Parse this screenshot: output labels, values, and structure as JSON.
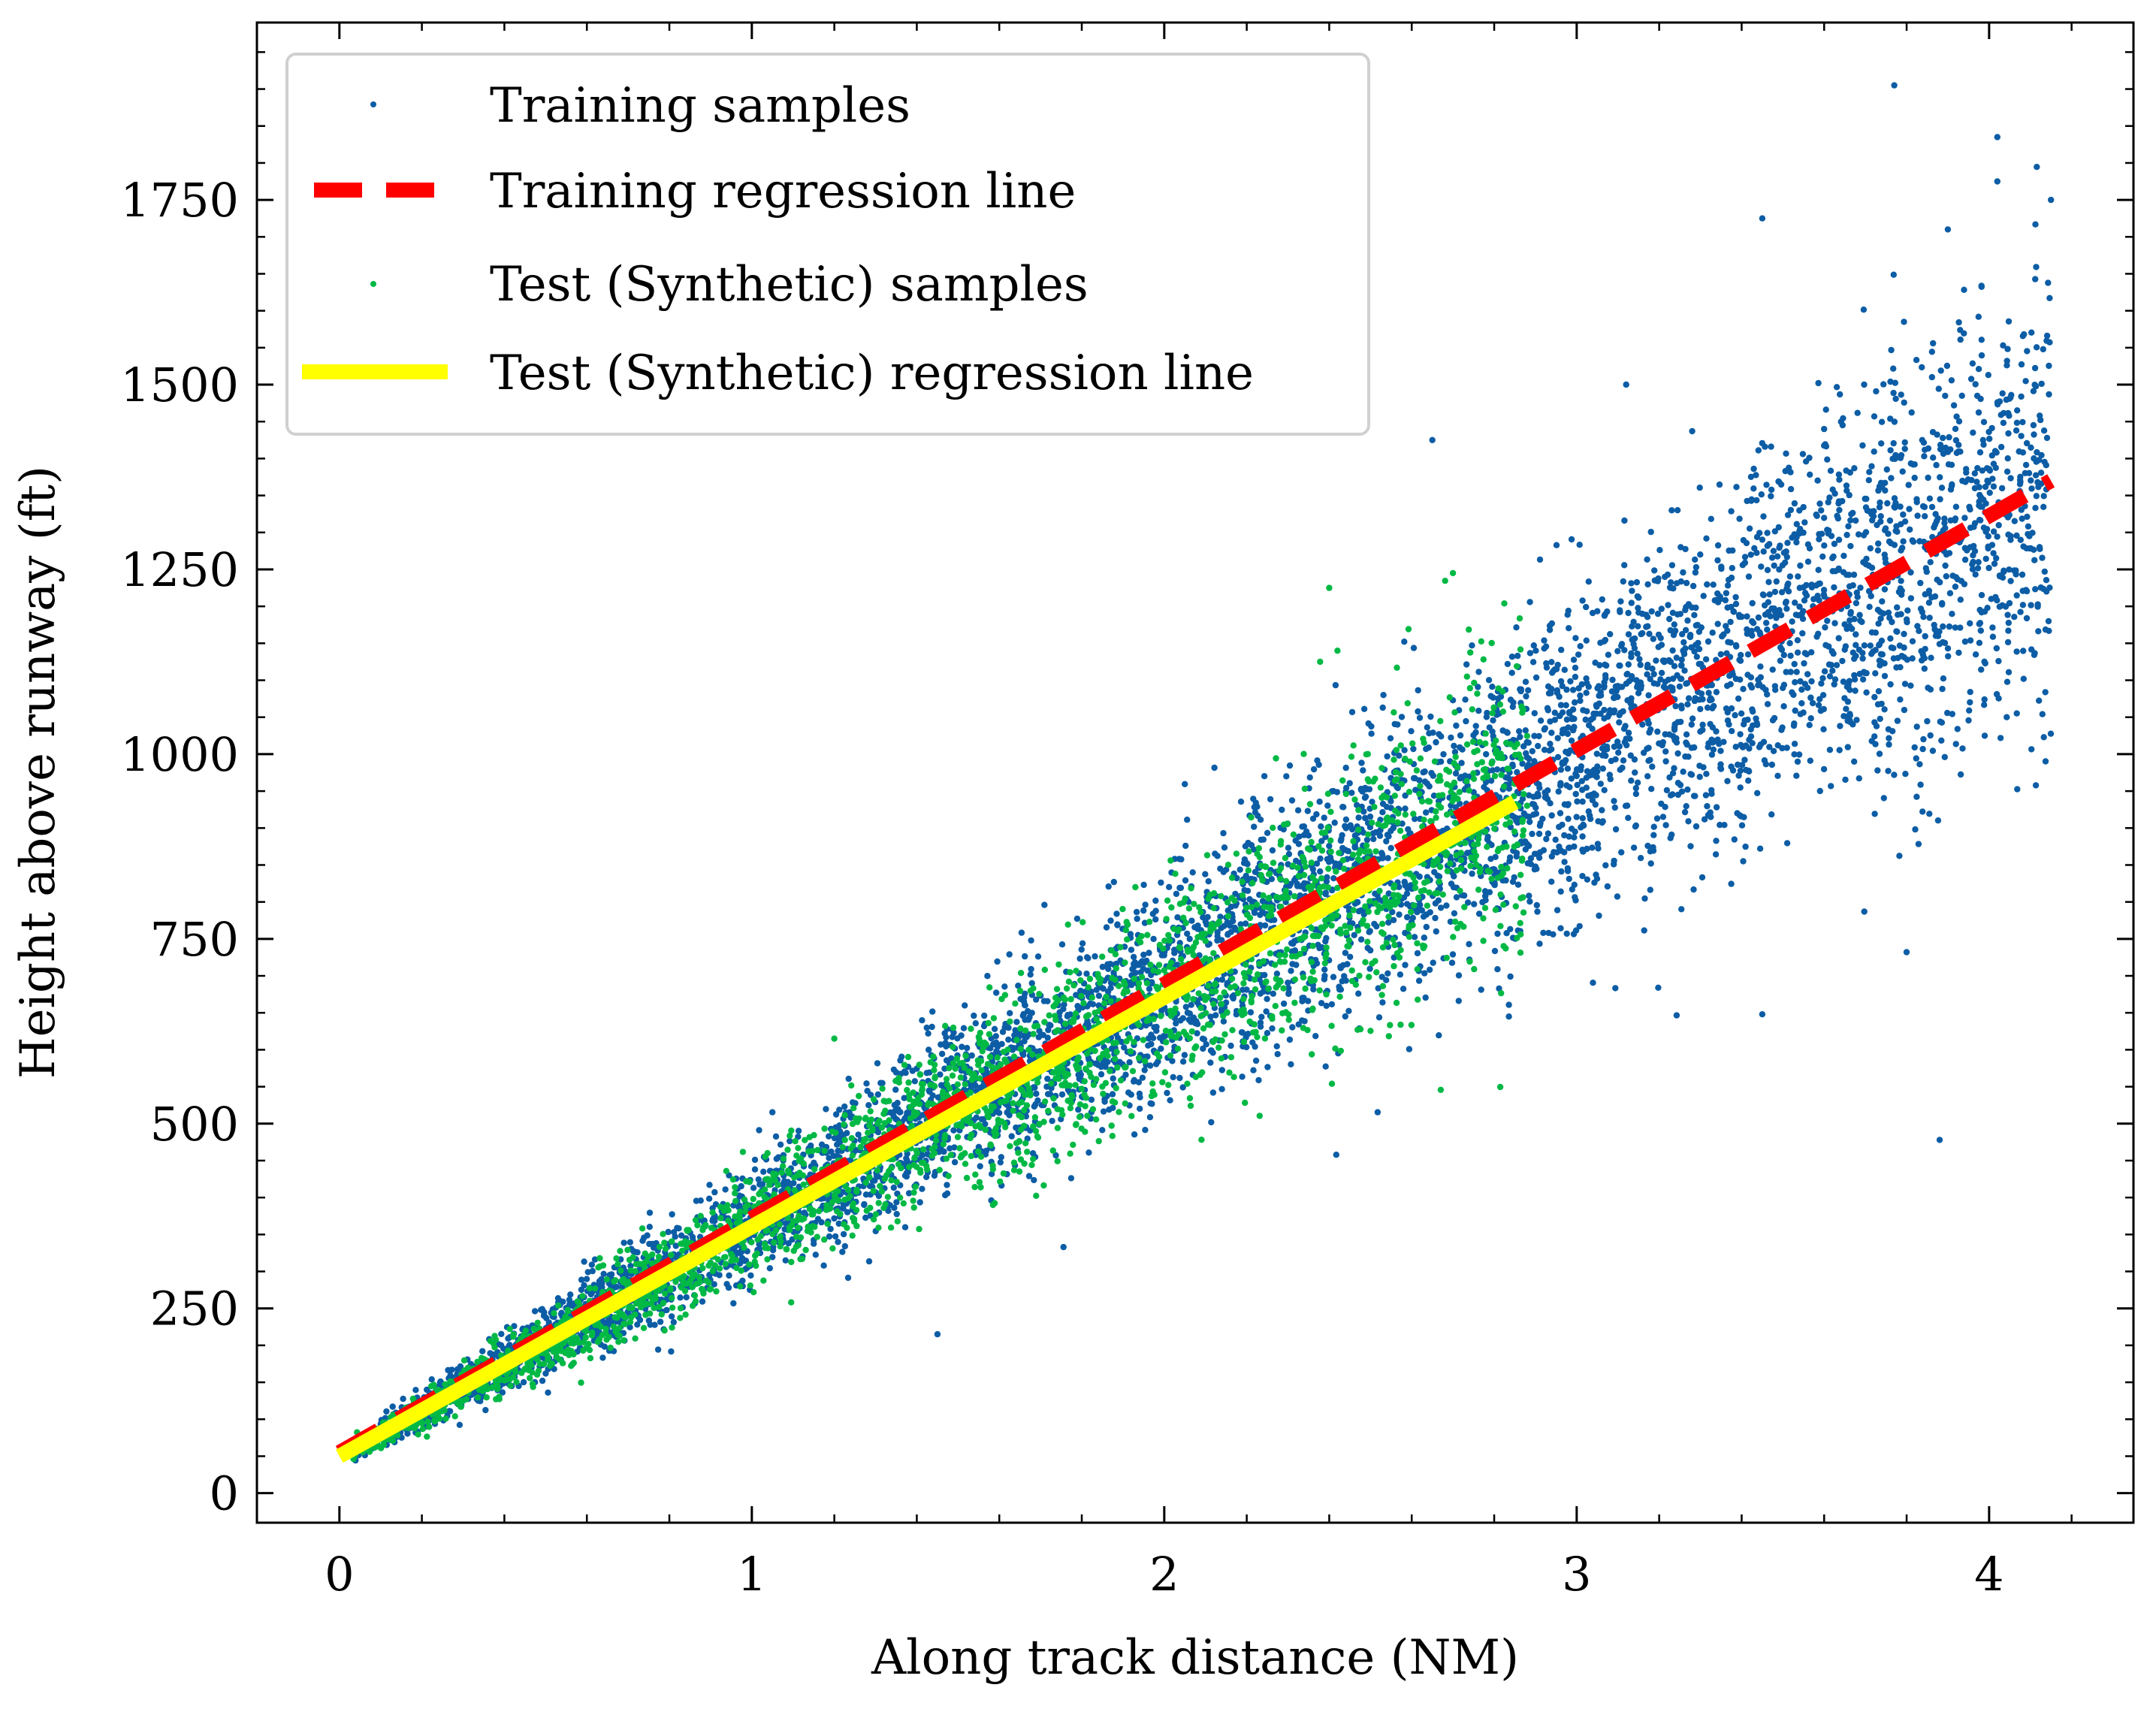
{
  "chart_data": {
    "type": "scatter",
    "title": "",
    "xlabel": "Along track distance (NM)",
    "ylabel": "Height above runway (ft)",
    "xlim": [
      -0.2,
      4.35
    ],
    "ylim": [
      -40,
      1990
    ],
    "xticks": [
      0,
      1,
      2,
      3,
      4
    ],
    "xtick_labels": [
      "0",
      "1",
      "2",
      "3",
      "4"
    ],
    "yticks": [
      0,
      250,
      500,
      750,
      1000,
      1250,
      1500,
      1750
    ],
    "ytick_labels": [
      "0",
      "250",
      "500",
      "750",
      "1000",
      "1250",
      "1500",
      "1750"
    ],
    "grid": false,
    "legend_position": "top-left",
    "series": [
      {
        "name": "Training samples",
        "kind": "scatter",
        "color": "#0C5DA5",
        "x_range": [
          0.03,
          4.15
        ],
        "trend_slope": 318,
        "trend_intercept": 48,
        "noise_rel": 0.11,
        "approx_count": 6000
      },
      {
        "name": "Training regression line",
        "kind": "line",
        "style": "dashed",
        "color": "#FF0000",
        "x": [
          0,
          4.15
        ],
        "y": [
          55,
          1370
        ]
      },
      {
        "name": "Test (Synthetic) samples",
        "kind": "scatter",
        "color": "#00B945",
        "x_range": [
          0.03,
          2.88
        ],
        "trend_slope": 312,
        "trend_intercept": 48,
        "noise_rel": 0.11,
        "approx_count": 2600
      },
      {
        "name": "Test (Synthetic) regression line",
        "kind": "line",
        "style": "solid",
        "color": "#FFFF00",
        "x": [
          0,
          2.85
        ],
        "y": [
          50,
          935
        ]
      }
    ],
    "outliers": {
      "Training samples": [
        [
          3.77,
          1905
        ],
        [
          4.02,
          1835
        ],
        [
          4.02,
          1775
        ],
        [
          4.15,
          1750
        ],
        [
          3.45,
          1725
        ],
        [
          3.9,
          1710
        ],
        [
          3.88,
          478
        ],
        [
          3.45,
          648
        ],
        [
          3.12,
          1500
        ],
        [
          3.28,
          1437
        ],
        [
          1.45,
          215
        ],
        [
          3.6,
          1440
        ],
        [
          2.65,
          1425
        ],
        [
          3.35,
          980
        ],
        [
          3.8,
          732
        ]
      ],
      "Test (Synthetic) samples": [
        [
          2.4,
          1225
        ],
        [
          2.7,
          1245
        ],
        [
          2.42,
          1140
        ],
        [
          1.93,
          820
        ],
        [
          1.2,
          615
        ]
      ]
    }
  }
}
